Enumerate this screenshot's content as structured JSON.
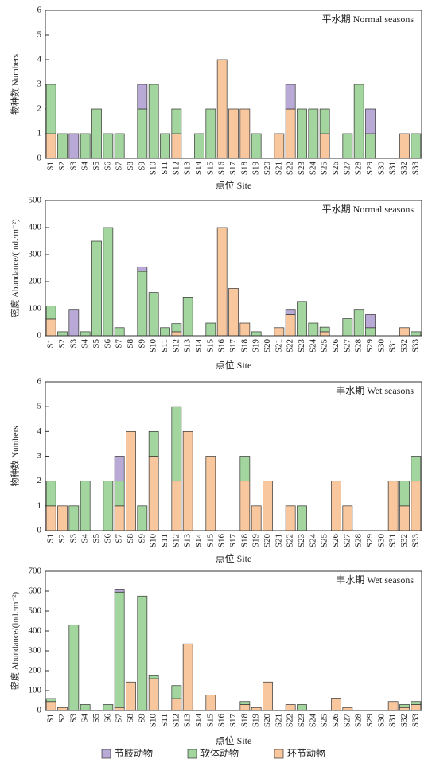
{
  "chart_data": [
    {
      "type": "bar",
      "stacked": true,
      "title": "平水期 Normal seasons",
      "x_label": "点位 Site",
      "y_label": "物种数 Numbers",
      "categories": [
        "S1",
        "S2",
        "S3",
        "S4",
        "S5",
        "S6",
        "S7",
        "S8",
        "S9",
        "S10",
        "S11",
        "S12",
        "S13",
        "S14",
        "S15",
        "S16",
        "S17",
        "S18",
        "S19",
        "S20",
        "S21",
        "S22",
        "S23",
        "S24",
        "S25",
        "S26",
        "S27",
        "S28",
        "S29",
        "S30",
        "S31",
        "S32",
        "S33"
      ],
      "ylim": [
        0,
        6
      ],
      "yticks": [
        0,
        1,
        2,
        3,
        4,
        5,
        6
      ],
      "series": [
        {
          "name": "节肢动物",
          "color": "#b9a9d6",
          "values": [
            0,
            0,
            1,
            0,
            0,
            0,
            0,
            0,
            1,
            0,
            0,
            0,
            0,
            0,
            0,
            0,
            0,
            0,
            0,
            0,
            0,
            1,
            0,
            0,
            0,
            0,
            0,
            0,
            1,
            0,
            0,
            0,
            0
          ]
        },
        {
          "name": "软体动物",
          "color": "#a3d69e",
          "values": [
            2,
            1,
            0,
            1,
            2,
            1,
            1,
            0,
            2,
            3,
            1,
            1,
            0,
            1,
            2,
            0,
            0,
            0,
            1,
            0,
            0,
            0,
            2,
            2,
            1,
            0,
            1,
            3,
            1,
            0,
            0,
            0,
            1
          ]
        },
        {
          "name": "环节动物",
          "color": "#f9c79e",
          "values": [
            1,
            0,
            0,
            0,
            0,
            0,
            0,
            0,
            0,
            0,
            0,
            1,
            0,
            0,
            0,
            4,
            2,
            2,
            0,
            0,
            1,
            2,
            0,
            0,
            1,
            0,
            0,
            0,
            0,
            0,
            0,
            1,
            0
          ]
        }
      ]
    },
    {
      "type": "bar",
      "stacked": true,
      "title": "平水期 Normal seasons",
      "x_label": "点位 Site",
      "y_label": "密度 Abundance/(ind.·m⁻²)",
      "categories": [
        "S1",
        "S2",
        "S3",
        "S4",
        "S5",
        "S6",
        "S7",
        "S8",
        "S9",
        "S10",
        "S11",
        "S12",
        "S13",
        "S14",
        "S15",
        "S16",
        "S17",
        "S18",
        "S19",
        "S20",
        "S21",
        "S22",
        "S23",
        "S24",
        "S25",
        "S26",
        "S27",
        "S28",
        "S29",
        "S30",
        "S31",
        "S32",
        "S33"
      ],
      "ylim": [
        0,
        500
      ],
      "yticks": [
        0,
        100,
        200,
        300,
        400,
        500
      ],
      "series": [
        {
          "values": [
            0,
            0,
            95,
            0,
            0,
            0,
            0,
            0,
            17,
            0,
            0,
            0,
            0,
            0,
            0,
            0,
            0,
            0,
            0,
            0,
            0,
            17,
            0,
            0,
            0,
            0,
            0,
            0,
            48,
            0,
            0,
            0,
            0
          ]
        },
        {
          "values": [
            48,
            15,
            0,
            15,
            350,
            400,
            30,
            0,
            238,
            160,
            30,
            30,
            143,
            0,
            47,
            0,
            0,
            0,
            15,
            0,
            0,
            0,
            127,
            47,
            17,
            0,
            63,
            95,
            30,
            0,
            0,
            0,
            15
          ]
        },
        {
          "values": [
            62,
            0,
            0,
            0,
            0,
            0,
            0,
            0,
            0,
            0,
            0,
            15,
            0,
            0,
            0,
            400,
            175,
            47,
            0,
            0,
            30,
            78,
            0,
            0,
            15,
            0,
            0,
            0,
            0,
            0,
            0,
            30,
            0
          ]
        }
      ]
    },
    {
      "type": "bar",
      "stacked": true,
      "title": "丰水期 Wet seasons",
      "x_label": "点位 Site",
      "y_label": "物种数 Numbers",
      "categories": [
        "S1",
        "S2",
        "S3",
        "S4",
        "S5",
        "S6",
        "S7",
        "S8",
        "S9",
        "S10",
        "S11",
        "S12",
        "S13",
        "S14",
        "S15",
        "S16",
        "S17",
        "S18",
        "S19",
        "S20",
        "S21",
        "S22",
        "S23",
        "S24",
        "S25",
        "S26",
        "S27",
        "S28",
        "S29",
        "S30",
        "S31",
        "S32",
        "S33"
      ],
      "ylim": [
        0,
        6
      ],
      "yticks": [
        0,
        1,
        2,
        3,
        4,
        5,
        6
      ],
      "series": [
        {
          "values": [
            0,
            0,
            0,
            0,
            0,
            0,
            1,
            0,
            0,
            0,
            0,
            0,
            0,
            0,
            0,
            0,
            0,
            0,
            0,
            0,
            0,
            0,
            0,
            0,
            0,
            0,
            0,
            0,
            0,
            0,
            0,
            0,
            0
          ]
        },
        {
          "values": [
            1,
            0,
            1,
            2,
            0,
            2,
            1,
            0,
            1,
            1,
            0,
            3,
            0,
            0,
            0,
            0,
            0,
            1,
            0,
            0,
            0,
            0,
            1,
            0,
            0,
            0,
            0,
            0,
            0,
            0,
            0,
            1,
            1
          ]
        },
        {
          "values": [
            1,
            1,
            0,
            0,
            0,
            0,
            1,
            4,
            0,
            3,
            0,
            2,
            4,
            0,
            3,
            0,
            0,
            2,
            1,
            2,
            0,
            1,
            0,
            0,
            0,
            2,
            1,
            0,
            0,
            0,
            2,
            1,
            2
          ]
        }
      ]
    },
    {
      "type": "bar",
      "stacked": true,
      "title": "丰水期 Wet seasons",
      "x_label": "点位 Site",
      "y_label": "密度 Abundance/(ind.·m⁻²)",
      "categories": [
        "S1",
        "S2",
        "S3",
        "S4",
        "S5",
        "S6",
        "S7",
        "S8",
        "S9",
        "S10",
        "S11",
        "S12",
        "S13",
        "S14",
        "S15",
        "S16",
        "S17",
        "S18",
        "S19",
        "S20",
        "S21",
        "S22",
        "S23",
        "S24",
        "S25",
        "S26",
        "S27",
        "S28",
        "S29",
        "S30",
        "S31",
        "S32",
        "S33"
      ],
      "ylim": [
        0,
        700
      ],
      "yticks": [
        0,
        100,
        200,
        300,
        400,
        500,
        600,
        700
      ],
      "series": [
        {
          "values": [
            0,
            0,
            0,
            0,
            0,
            0,
            15,
            0,
            0,
            0,
            0,
            0,
            0,
            0,
            0,
            0,
            0,
            0,
            0,
            0,
            0,
            0,
            0,
            0,
            0,
            0,
            0,
            0,
            0,
            0,
            0,
            0,
            0
          ]
        },
        {
          "values": [
            15,
            0,
            430,
            30,
            0,
            30,
            580,
            0,
            575,
            15,
            0,
            65,
            0,
            0,
            0,
            0,
            0,
            15,
            0,
            0,
            0,
            0,
            30,
            0,
            0,
            0,
            0,
            0,
            0,
            0,
            0,
            15,
            15
          ]
        },
        {
          "values": [
            45,
            15,
            0,
            0,
            0,
            0,
            15,
            143,
            0,
            160,
            0,
            60,
            335,
            0,
            78,
            0,
            0,
            30,
            15,
            143,
            0,
            30,
            0,
            0,
            0,
            62,
            15,
            0,
            0,
            0,
            45,
            15,
            30
          ]
        }
      ]
    }
  ]
}
